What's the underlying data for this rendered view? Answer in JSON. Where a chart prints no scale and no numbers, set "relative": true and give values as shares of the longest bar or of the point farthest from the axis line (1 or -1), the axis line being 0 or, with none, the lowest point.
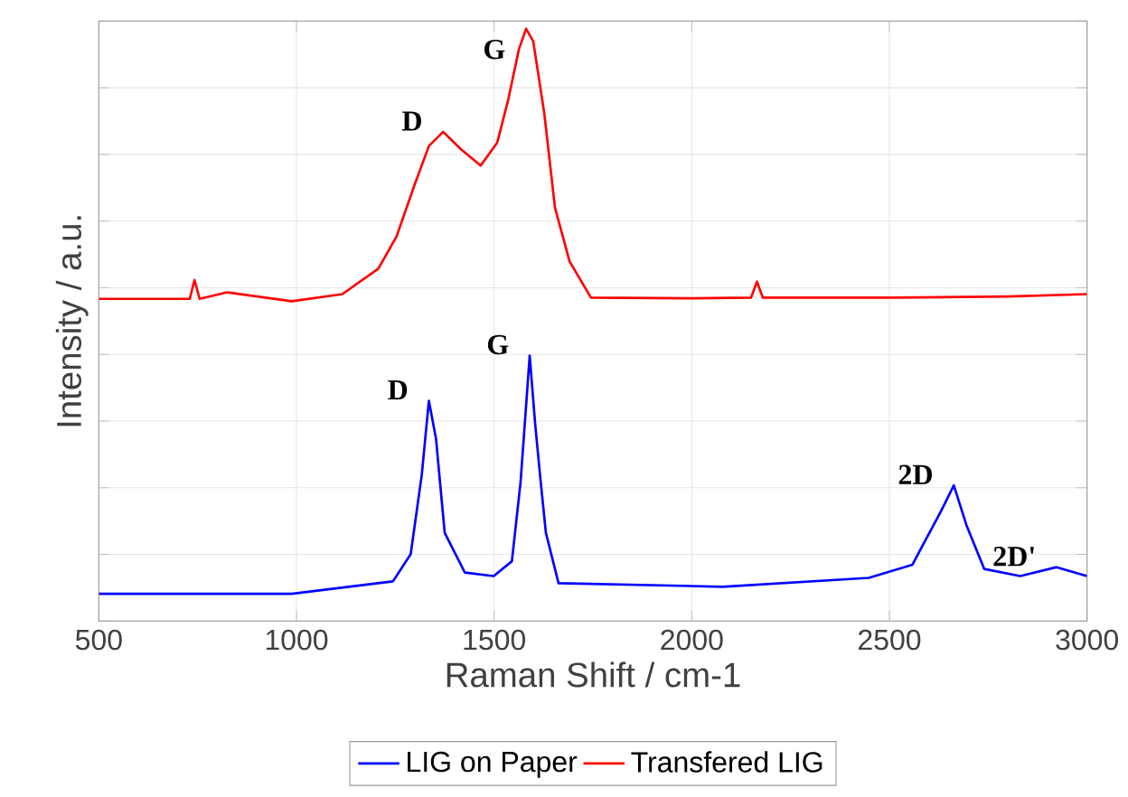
{
  "chart_data": {
    "type": "line",
    "xlabel": "Raman Shift / cm-1",
    "ylabel": "Intensity / a.u.",
    "relative": true,
    "xlim": [
      500,
      3000
    ],
    "xticks": [
      500,
      1000,
      1500,
      2000,
      2500,
      3000
    ],
    "grid": true,
    "legend": "bottom",
    "marker": "none",
    "line_style": "solid",
    "series": [
      {
        "name": "LIG on Paper",
        "color": "#0000ff",
        "x": [
          500,
          988,
          1244,
          1289,
          1317,
          1335,
          1353,
          1375,
          1426,
          1499,
          1545,
          1567,
          1590,
          1604,
          1617,
          1631,
          1663,
          2078,
          2448,
          2558,
          2631,
          2663,
          2695,
          2740,
          2831,
          2923,
          3000
        ],
        "values": [
          0.046,
          0.046,
          0.067,
          0.113,
          0.247,
          0.372,
          0.308,
          0.149,
          0.082,
          0.076,
          0.101,
          0.235,
          0.448,
          0.332,
          0.241,
          0.149,
          0.064,
          0.058,
          0.073,
          0.095,
          0.186,
          0.229,
          0.162,
          0.088,
          0.076,
          0.091,
          0.076
        ]
      },
      {
        "name": "Transfered LIG",
        "color": "#ff0000",
        "x": [
          500,
          730,
          742,
          755,
          824,
          988,
          1116,
          1207,
          1253,
          1298,
          1335,
          1371,
          1417,
          1466,
          1508,
          1536,
          1563,
          1581,
          1599,
          1627,
          1654,
          1691,
          1745,
          2000,
          2150,
          2165,
          2180,
          2500,
          2800,
          3000
        ],
        "values": [
          0.544,
          0.544,
          0.576,
          0.544,
          0.555,
          0.54,
          0.552,
          0.595,
          0.649,
          0.735,
          0.802,
          0.826,
          0.796,
          0.769,
          0.808,
          0.881,
          0.966,
          1,
          0.979,
          0.857,
          0.698,
          0.607,
          0.546,
          0.545,
          0.546,
          0.573,
          0.546,
          0.546,
          0.548,
          0.552
        ]
      }
    ],
    "annotations": [
      {
        "text": "D",
        "x": 1371,
        "y": 0.826
      },
      {
        "text": "G",
        "x": 1581,
        "y": 1
      },
      {
        "text": "D",
        "x": 1335,
        "y": 0.372
      },
      {
        "text": "G",
        "x": 1590,
        "y": 0.448
      },
      {
        "text": "2D",
        "x": 2663,
        "y": 0.229
      },
      {
        "text": "2D'",
        "x": 2923,
        "y": 0.091
      }
    ]
  }
}
